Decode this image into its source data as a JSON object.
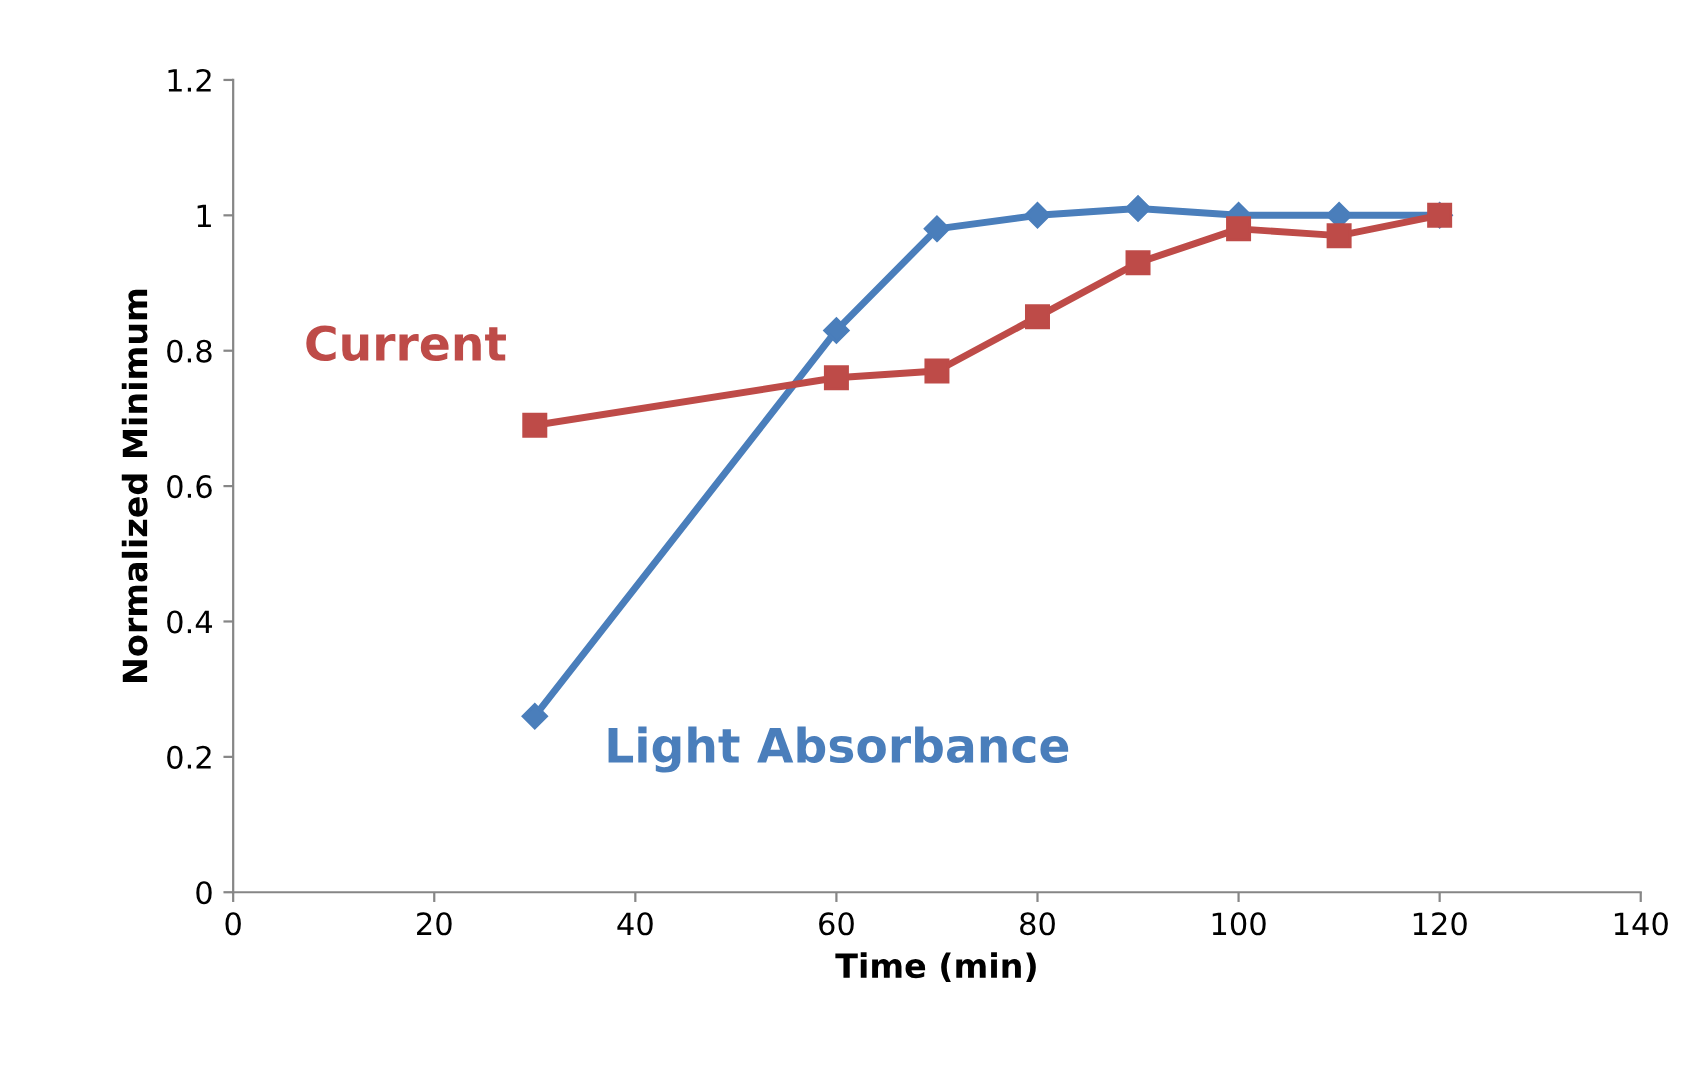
{
  "chart_data": {
    "type": "line",
    "xlabel": "Time (min)",
    "ylabel": "Normalized Minimum",
    "xlim": [
      0,
      140
    ],
    "xticks": [
      0,
      20,
      40,
      60,
      80,
      100,
      120,
      140
    ],
    "ylim": [
      0,
      1.2
    ],
    "yticks": [
      0,
      0.2,
      0.4,
      0.6,
      0.8,
      1,
      1.2
    ],
    "grid": false,
    "legend": false,
    "series": [
      {
        "name": "Light Absorbance",
        "color": "#4a7ebb",
        "marker": "diamond",
        "x": [
          30,
          60,
          70,
          80,
          90,
          100,
          110,
          120
        ],
        "values": [
          0.26,
          0.83,
          0.98,
          1.0,
          1.01,
          1.0,
          1.0,
          1.0
        ]
      },
      {
        "name": "Current",
        "color": "#be4b48",
        "marker": "square",
        "x": [
          30,
          60,
          70,
          80,
          90,
          100,
          110,
          120
        ],
        "values": [
          0.69,
          0.76,
          0.77,
          0.85,
          0.93,
          0.98,
          0.97,
          1.0
        ]
      }
    ]
  }
}
